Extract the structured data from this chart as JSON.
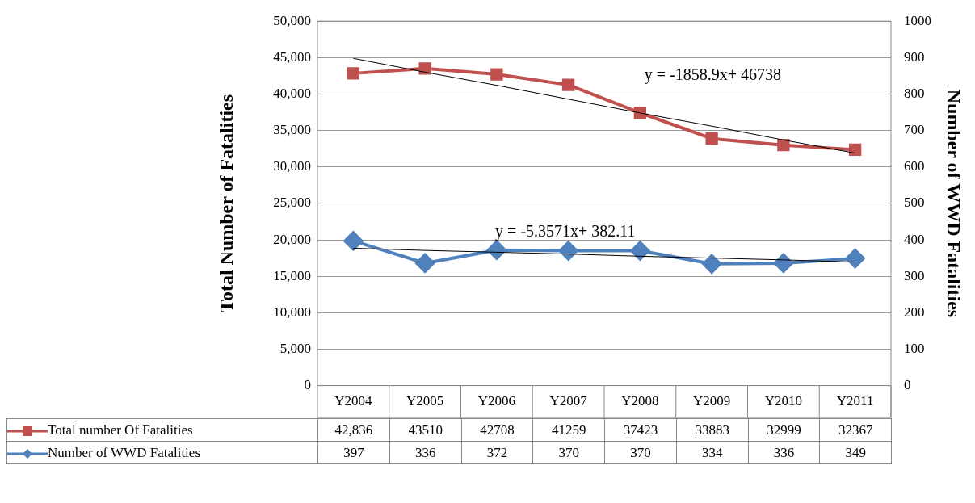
{
  "chart_data": {
    "type": "line",
    "ylabel": "Total Number of Fatalities",
    "y2label": "Number of WWD Fatalities",
    "categories": [
      "Y2004",
      "Y2005",
      "Y2006",
      "Y2007",
      "Y2008",
      "Y2009",
      "Y2010",
      "Y2011"
    ],
    "series": [
      {
        "name": "Total number Of Fatalities",
        "color": "#c0504d",
        "marker": "square",
        "values": [
          42836,
          43510,
          42708,
          41259,
          37423,
          33883,
          32999,
          32367
        ],
        "value_labels": [
          "42,836",
          "43510",
          "42708",
          "41259",
          "37423",
          "33883",
          "32999",
          "32367"
        ]
      },
      {
        "name": "Number of WWD Fatalities",
        "color": "#4f81bd",
        "marker": "diamond",
        "axis": "y2",
        "values": [
          397,
          336,
          372,
          370,
          370,
          334,
          336,
          349
        ],
        "value_labels": [
          "397",
          "336",
          "372",
          "370",
          "370",
          "334",
          "336",
          "349"
        ]
      },
      {
        "type": "line",
        "color": "#000000",
        "marker": "none",
        "values": [
          44900,
          43000,
          41200,
          39300,
          37400,
          35600,
          33700,
          31900
        ]
      },
      {
        "type": "line",
        "color": "#000000",
        "marker": "none",
        "axis": "y2",
        "values": [
          377,
          371,
          366,
          361,
          355,
          350,
          345,
          339
        ]
      }
    ],
    "ylim": [
      0,
      50000
    ],
    "yticks": [
      {
        "value": 0,
        "label": "0"
      },
      {
        "value": 5000,
        "label": "5,000"
      },
      {
        "value": 10000,
        "label": "10,000"
      },
      {
        "value": 15000,
        "label": "15,000"
      },
      {
        "value": 20000,
        "label": "20,000"
      },
      {
        "value": 25000,
        "label": "25,000"
      },
      {
        "value": 30000,
        "label": "30,000"
      },
      {
        "value": 35000,
        "label": "35,000"
      },
      {
        "value": 40000,
        "label": "40,000"
      },
      {
        "value": 45000,
        "label": "45,000"
      },
      {
        "value": 50000,
        "label": "50,000"
      }
    ],
    "y2lim": [
      0,
      1000
    ],
    "y2ticks": [
      0,
      100,
      200,
      300,
      400,
      500,
      600,
      700,
      800,
      900,
      1000
    ],
    "annotations": [
      "y = -1858.9x+ 46738",
      "y = -5.3571x+ 382.11"
    ],
    "grid": "y",
    "legend": "bottom"
  }
}
